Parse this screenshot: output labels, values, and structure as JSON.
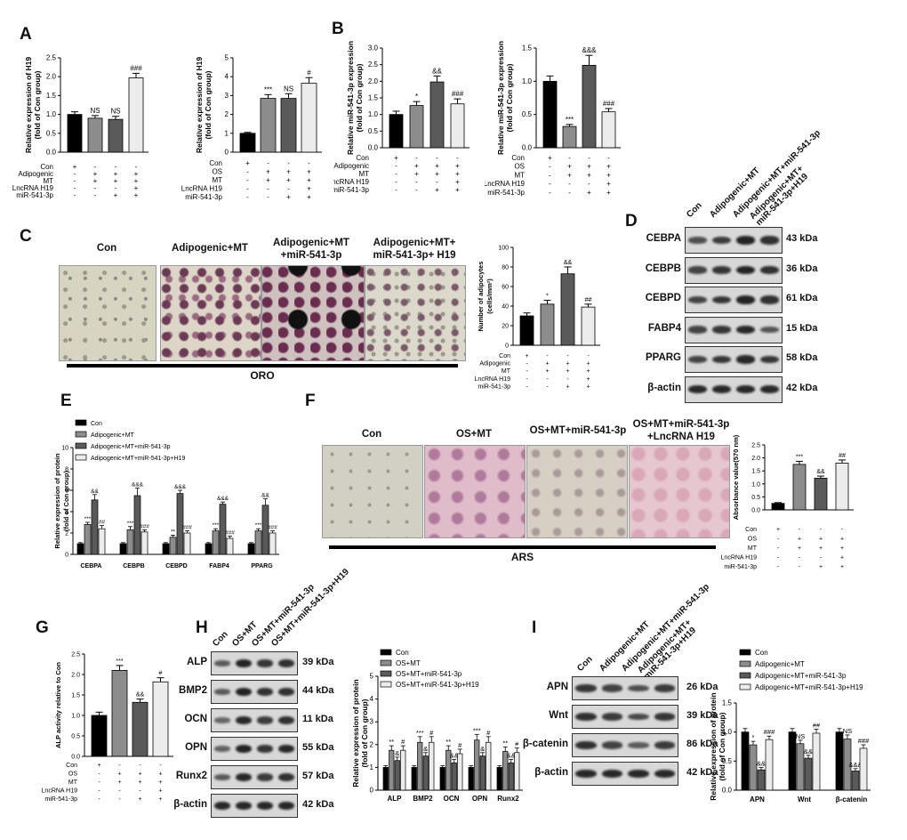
{
  "figure": {
    "panel_letters": [
      "A",
      "B",
      "C",
      "D",
      "E",
      "F",
      "G",
      "H",
      "I"
    ],
    "oro": {
      "headers": [
        "Con",
        "Adipogenic+MT",
        "Adipogenic+MT\n+miR-541-3p",
        "Adipogenic+MT+\nmiR-541-3p+ H19"
      ],
      "underline": "ORO"
    },
    "ars": {
      "headers": [
        "Con",
        "OS+MT",
        "OS+MT+miR-541-3p",
        "OS+MT+miR-541-3p\n+LncRNA H19"
      ],
      "underline": "ARS"
    },
    "blot_d": {
      "lanes": [
        "Con",
        "Adipogenic+MT",
        "Adipogenic+MT+miR-541-3p",
        "Adipogenic+MT+\nmiR-541-3p+H19"
      ],
      "bands": [
        {
          "name": "CEBPA",
          "kda": "43 kDa",
          "int": [
            0.6,
            0.75,
            0.95,
            0.85
          ]
        },
        {
          "name": "CEBPB",
          "kda": "36 kDa",
          "int": [
            0.7,
            0.8,
            0.95,
            0.85
          ]
        },
        {
          "name": "CEBPD",
          "kda": "61 kDa",
          "int": [
            0.7,
            0.8,
            0.95,
            0.85
          ]
        },
        {
          "name": "FABP4",
          "kda": "15 kDa",
          "int": [
            0.7,
            0.8,
            0.9,
            0.55
          ]
        },
        {
          "name": "PPARG",
          "kda": "58 kDa",
          "int": [
            0.7,
            0.8,
            0.9,
            0.8
          ]
        },
        {
          "name": "β-actin",
          "kda": "42 kDa",
          "int": [
            0.9,
            0.9,
            0.9,
            0.9
          ]
        }
      ]
    },
    "blot_h": {
      "lanes": [
        "Con",
        "OS+MT",
        "OS+MT+miR-541-3p",
        "OS+MT+miR-541-3p+H19"
      ],
      "bands": [
        {
          "name": "ALP",
          "kda": "39 kDa",
          "int": [
            0.5,
            0.95,
            0.8,
            0.85
          ]
        },
        {
          "name": "BMP2",
          "kda": "44 kDa",
          "int": [
            0.5,
            0.95,
            0.85,
            0.85
          ]
        },
        {
          "name": "OCN",
          "kda": "11 kDa",
          "int": [
            0.4,
            0.9,
            0.75,
            0.85
          ]
        },
        {
          "name": "OPN",
          "kda": "55 kDa",
          "int": [
            0.45,
            0.95,
            0.8,
            0.9
          ]
        },
        {
          "name": "Runx2",
          "kda": "57 kDa",
          "int": [
            0.5,
            0.9,
            0.75,
            0.85
          ]
        },
        {
          "name": "β-actin",
          "kda": "42 kDa",
          "int": [
            0.9,
            0.9,
            0.9,
            0.9
          ]
        }
      ]
    },
    "blot_i": {
      "lanes": [
        "Con",
        "Adipogenic+MT",
        "Adipogenic+MT+miR-541-3p",
        "Adipogenic+MT+\nmiR-541-3p+H19"
      ],
      "bands": [
        {
          "name": "APN",
          "kda": "26 kDa",
          "int": [
            0.8,
            0.7,
            0.6,
            0.75
          ]
        },
        {
          "name": "Wnt",
          "kda": "39 kDa",
          "int": [
            0.85,
            0.75,
            0.65,
            0.8
          ]
        },
        {
          "name": "β-catenin",
          "kda": "86 kDa",
          "int": [
            0.85,
            0.7,
            0.5,
            0.75
          ]
        },
        {
          "name": "β-actin",
          "kda": "42 kDa",
          "int": [
            0.9,
            0.9,
            0.9,
            0.9
          ]
        }
      ]
    }
  },
  "chart_data": [
    {
      "id": "A1",
      "type": "bar",
      "ylabel": "Relative  expression of H19\n(fold of Con group)",
      "ylim": [
        0,
        2.5
      ],
      "ticks": [
        0,
        0.5,
        1.0,
        1.5,
        2.0,
        2.5
      ],
      "values": [
        1.0,
        0.9,
        0.87,
        1.97
      ],
      "errors": [
        0.07,
        0.07,
        0.08,
        0.12
      ],
      "labels": [
        "",
        "NS",
        "NS",
        "###"
      ],
      "rows": [
        {
          "label": "Con",
          "marks": [
            "+",
            "-",
            "-",
            "-"
          ]
        },
        {
          "label": "Adipogenic",
          "marks": [
            "-",
            "+",
            "+",
            "+"
          ]
        },
        {
          "label": "MT",
          "marks": [
            "-",
            "+",
            "+",
            "+"
          ]
        },
        {
          "label": "LncRNA H19",
          "marks": [
            "-",
            "-",
            "-",
            "+"
          ]
        },
        {
          "label": "miR-541-3p",
          "marks": [
            "-",
            "-",
            "+",
            "+"
          ]
        }
      ]
    },
    {
      "id": "A2",
      "type": "bar",
      "ylabel": "Relative  expression of H19\n(fold of Con group)",
      "ylim": [
        0,
        5
      ],
      "ticks": [
        0,
        1,
        2,
        3,
        4,
        5
      ],
      "values": [
        1.0,
        2.85,
        2.85,
        3.65
      ],
      "errors": [
        0.05,
        0.2,
        0.25,
        0.3
      ],
      "labels": [
        "",
        "***",
        "NS",
        "#"
      ],
      "rows": [
        {
          "label": "Con",
          "marks": [
            "+",
            "-",
            "-",
            "-"
          ]
        },
        {
          "label": "OS",
          "marks": [
            "-",
            "+",
            "+",
            "+"
          ]
        },
        {
          "label": "MT",
          "marks": [
            "-",
            "+",
            "+",
            "+"
          ]
        },
        {
          "label": "LncRNA H19",
          "marks": [
            "-",
            "-",
            "-",
            "+"
          ]
        },
        {
          "label": "miR-541-3p",
          "marks": [
            "-",
            "-",
            "+",
            "+"
          ]
        }
      ]
    },
    {
      "id": "B1",
      "type": "bar",
      "ylabel": "Relative miR-541-3p expression\n(fold of Con group)",
      "ylim": [
        0,
        3.0
      ],
      "ticks": [
        0,
        0.5,
        1.0,
        1.5,
        2.0,
        2.5,
        3.0
      ],
      "values": [
        1.0,
        1.27,
        1.98,
        1.32
      ],
      "errors": [
        0.1,
        0.12,
        0.18,
        0.15
      ],
      "labels": [
        "",
        "*",
        "&&",
        "###"
      ],
      "rows": [
        {
          "label": "Con",
          "marks": [
            "+",
            "-",
            "-",
            "-"
          ]
        },
        {
          "label": "Adipogenic",
          "marks": [
            "-",
            "+",
            "+",
            "+"
          ]
        },
        {
          "label": "MT",
          "marks": [
            "-",
            "+",
            "+",
            "+"
          ]
        },
        {
          "label": "LncRNA H19",
          "marks": [
            "-",
            "-",
            "-",
            "+"
          ]
        },
        {
          "label": "miR-541-3p",
          "marks": [
            "-",
            "-",
            "+",
            "+"
          ]
        }
      ]
    },
    {
      "id": "B2",
      "type": "bar",
      "ylabel": "Relative miR-541-3p expression\n(fold of Con group)",
      "ylim": [
        0,
        1.5
      ],
      "ticks": [
        0,
        0.5,
        1.0,
        1.5
      ],
      "values": [
        1.0,
        0.32,
        1.24,
        0.54
      ],
      "errors": [
        0.08,
        0.03,
        0.15,
        0.05
      ],
      "labels": [
        "",
        "***",
        "&&&",
        "###"
      ],
      "rows": [
        {
          "label": "Con",
          "marks": [
            "+",
            "-",
            "-",
            "-"
          ]
        },
        {
          "label": "OS",
          "marks": [
            "-",
            "+",
            "+",
            "+"
          ]
        },
        {
          "label": "MT",
          "marks": [
            "-",
            "+",
            "+",
            "+"
          ]
        },
        {
          "label": "LncRNA H19",
          "marks": [
            "-",
            "-",
            "-",
            "+"
          ]
        },
        {
          "label": "miR-541-3p",
          "marks": [
            "-",
            "-",
            "+",
            "+"
          ]
        }
      ]
    },
    {
      "id": "C",
      "type": "bar",
      "ylabel": "Number of adipocytes\n(cells/mm²)",
      "ylim": [
        0,
        100
      ],
      "ticks": [
        0,
        20,
        40,
        60,
        80,
        100
      ],
      "values": [
        30,
        42,
        73,
        39
      ],
      "errors": [
        3,
        4,
        7,
        3
      ],
      "labels": [
        "",
        "*",
        "&&",
        "##"
      ],
      "rows": [
        {
          "label": "Con",
          "marks": [
            "+",
            "-",
            "-",
            "-"
          ]
        },
        {
          "label": "Adipogenic",
          "marks": [
            "-",
            "+",
            "+",
            "+"
          ]
        },
        {
          "label": "MT",
          "marks": [
            "-",
            "+",
            "+",
            "+"
          ]
        },
        {
          "label": "LncRNA H19",
          "marks": [
            "-",
            "-",
            "-",
            "+"
          ]
        },
        {
          "label": "miR-541-3p",
          "marks": [
            "-",
            "-",
            "+",
            "+"
          ]
        }
      ]
    },
    {
      "id": "F",
      "type": "bar",
      "ylabel": "Absorbance value(570 nm)",
      "ylim": [
        0,
        2.5
      ],
      "ticks": [
        0.0,
        0.5,
        1.0,
        1.5,
        2.0,
        2.5
      ],
      "values": [
        0.25,
        1.75,
        1.22,
        1.8
      ],
      "errors": [
        0.03,
        0.12,
        0.08,
        0.12
      ],
      "labels": [
        "",
        "***",
        "&&",
        "##"
      ],
      "rows": [
        {
          "label": "Con",
          "marks": [
            "+",
            "-",
            "-",
            "-"
          ]
        },
        {
          "label": "OS",
          "marks": [
            "-",
            "+",
            "+",
            "+"
          ]
        },
        {
          "label": "MT",
          "marks": [
            "-",
            "+",
            "+",
            "+"
          ]
        },
        {
          "label": "LncRNA H19",
          "marks": [
            "-",
            "-",
            "-",
            "+"
          ]
        },
        {
          "label": "miR-541-3p",
          "marks": [
            "-",
            "-",
            "+",
            "+"
          ]
        }
      ]
    },
    {
      "id": "G",
      "type": "bar",
      "ylabel": "ALP activity relative to Con",
      "ylim": [
        0,
        2.5
      ],
      "ticks": [
        0.0,
        0.5,
        1.0,
        1.5,
        2.0,
        2.5
      ],
      "values": [
        1.0,
        2.1,
        1.32,
        1.82
      ],
      "errors": [
        0.08,
        0.12,
        0.08,
        0.1
      ],
      "labels": [
        "",
        "***",
        "&&",
        "#"
      ],
      "rows": [
        {
          "label": "Con",
          "marks": [
            "+",
            "-",
            "-",
            "-"
          ]
        },
        {
          "label": "OS",
          "marks": [
            "-",
            "+",
            "+",
            "+"
          ]
        },
        {
          "label": "MT",
          "marks": [
            "-",
            "+",
            "+",
            "+"
          ]
        },
        {
          "label": "LncRNA H19",
          "marks": [
            "-",
            "-",
            "-",
            "+"
          ]
        },
        {
          "label": "miR-541-3p",
          "marks": [
            "-",
            "-",
            "+",
            "+"
          ]
        }
      ]
    },
    {
      "id": "E",
      "type": "bar",
      "ylabel": "Relative  expression of protein\n(fold of Con group)",
      "ylim": [
        0,
        10
      ],
      "ticks": [
        0,
        2,
        4,
        6,
        8,
        10
      ],
      "categories": [
        "CEBPA",
        "CEBPB",
        "CEBPD",
        "FABP4",
        "PPARG"
      ],
      "series": [
        {
          "name": "Con",
          "values": [
            1,
            1,
            1,
            1,
            1
          ],
          "errors": [
            0.1,
            0.1,
            0.1,
            0.1,
            0.1
          ],
          "labels": [
            "",
            "",
            "",
            "",
            ""
          ]
        },
        {
          "name": "Adipogenic+MT",
          "values": [
            2.8,
            2.3,
            1.6,
            2.2,
            2.2
          ],
          "errors": [
            0.2,
            0.3,
            0.2,
            0.2,
            0.2
          ],
          "labels": [
            "***",
            "***",
            "**",
            "***",
            "***"
          ]
        },
        {
          "name": "Adipogenic+MT+miR-541-3p",
          "values": [
            5.1,
            5.5,
            5.7,
            4.7,
            4.6
          ],
          "errors": [
            0.5,
            0.7,
            0.3,
            0.2,
            0.6
          ],
          "labels": [
            "&&",
            "&&&",
            "&&&",
            "&&&",
            "&&"
          ]
        },
        {
          "name": "Adipogenic+MT+miR-541-3p+H19",
          "values": [
            2.4,
            2.1,
            2.0,
            1.5,
            2.0
          ],
          "errors": [
            0.3,
            0.2,
            0.2,
            0.2,
            0.2
          ],
          "labels": [
            "##",
            "###",
            "###",
            "###",
            "###"
          ]
        }
      ]
    },
    {
      "id": "H",
      "type": "bar",
      "ylabel": "Relative  expression of protein\n(fold of Con group)",
      "ylim": [
        0,
        5
      ],
      "ticks": [
        0,
        1,
        2,
        3,
        4,
        5
      ],
      "categories": [
        "ALP",
        "BMP2",
        "OCN",
        "OPN",
        "Runx2"
      ],
      "series": [
        {
          "name": "Con",
          "values": [
            1,
            1,
            1,
            1,
            1
          ],
          "errors": [
            0.08,
            0.08,
            0.08,
            0.08,
            0.08
          ],
          "labels": [
            "",
            "",
            "",
            "",
            ""
          ]
        },
        {
          "name": "OS+MT",
          "values": [
            1.75,
            2.1,
            1.75,
            2.2,
            1.7
          ],
          "errors": [
            0.2,
            0.25,
            0.2,
            0.25,
            0.2
          ],
          "labels": [
            "**",
            "***",
            "**",
            "***",
            "**"
          ]
        },
        {
          "name": "OS+MT+miR-541-3p",
          "values": [
            1.3,
            1.5,
            1.2,
            1.5,
            1.2
          ],
          "errors": [
            0.15,
            0.15,
            0.15,
            0.15,
            0.15
          ],
          "labels": [
            "&",
            "&",
            "&&",
            "&",
            "&&"
          ]
        },
        {
          "name": "OS+MT+miR-541-3p+H19",
          "values": [
            1.75,
            2.1,
            1.6,
            2.1,
            1.65
          ],
          "errors": [
            0.2,
            0.25,
            0.2,
            0.25,
            0.2
          ],
          "labels": [
            "#",
            "#",
            "#",
            "#",
            "#"
          ]
        }
      ]
    },
    {
      "id": "I",
      "type": "bar",
      "ylabel": "Relative  expression of protein\n(fold of Con group)",
      "ylim": [
        0,
        1.5
      ],
      "ticks": [
        0.0,
        0.5,
        1.0,
        1.5
      ],
      "categories": [
        "APN",
        "Wnt",
        "β-catenin"
      ],
      "series": [
        {
          "name": "Con",
          "values": [
            1,
            1,
            1
          ],
          "errors": [
            0.06,
            0.06,
            0.06
          ],
          "labels": [
            "",
            "",
            ""
          ]
        },
        {
          "name": "Adipogenic+MT",
          "values": [
            0.78,
            0.8,
            0.88
          ],
          "errors": [
            0.06,
            0.06,
            0.07
          ],
          "labels": [
            "*",
            "NS",
            "NS"
          ]
        },
        {
          "name": "Adipogenic+MT+miR-541-3p",
          "values": [
            0.35,
            0.55,
            0.33
          ],
          "errors": [
            0.04,
            0.05,
            0.04
          ],
          "labels": [
            "&&",
            "&&",
            "&&&"
          ]
        },
        {
          "name": "Adipogenic+MT+miR-541-3p+H19",
          "values": [
            0.87,
            0.98,
            0.72
          ],
          "errors": [
            0.06,
            0.07,
            0.06
          ],
          "labels": [
            "###",
            "##",
            "###"
          ]
        }
      ]
    }
  ]
}
